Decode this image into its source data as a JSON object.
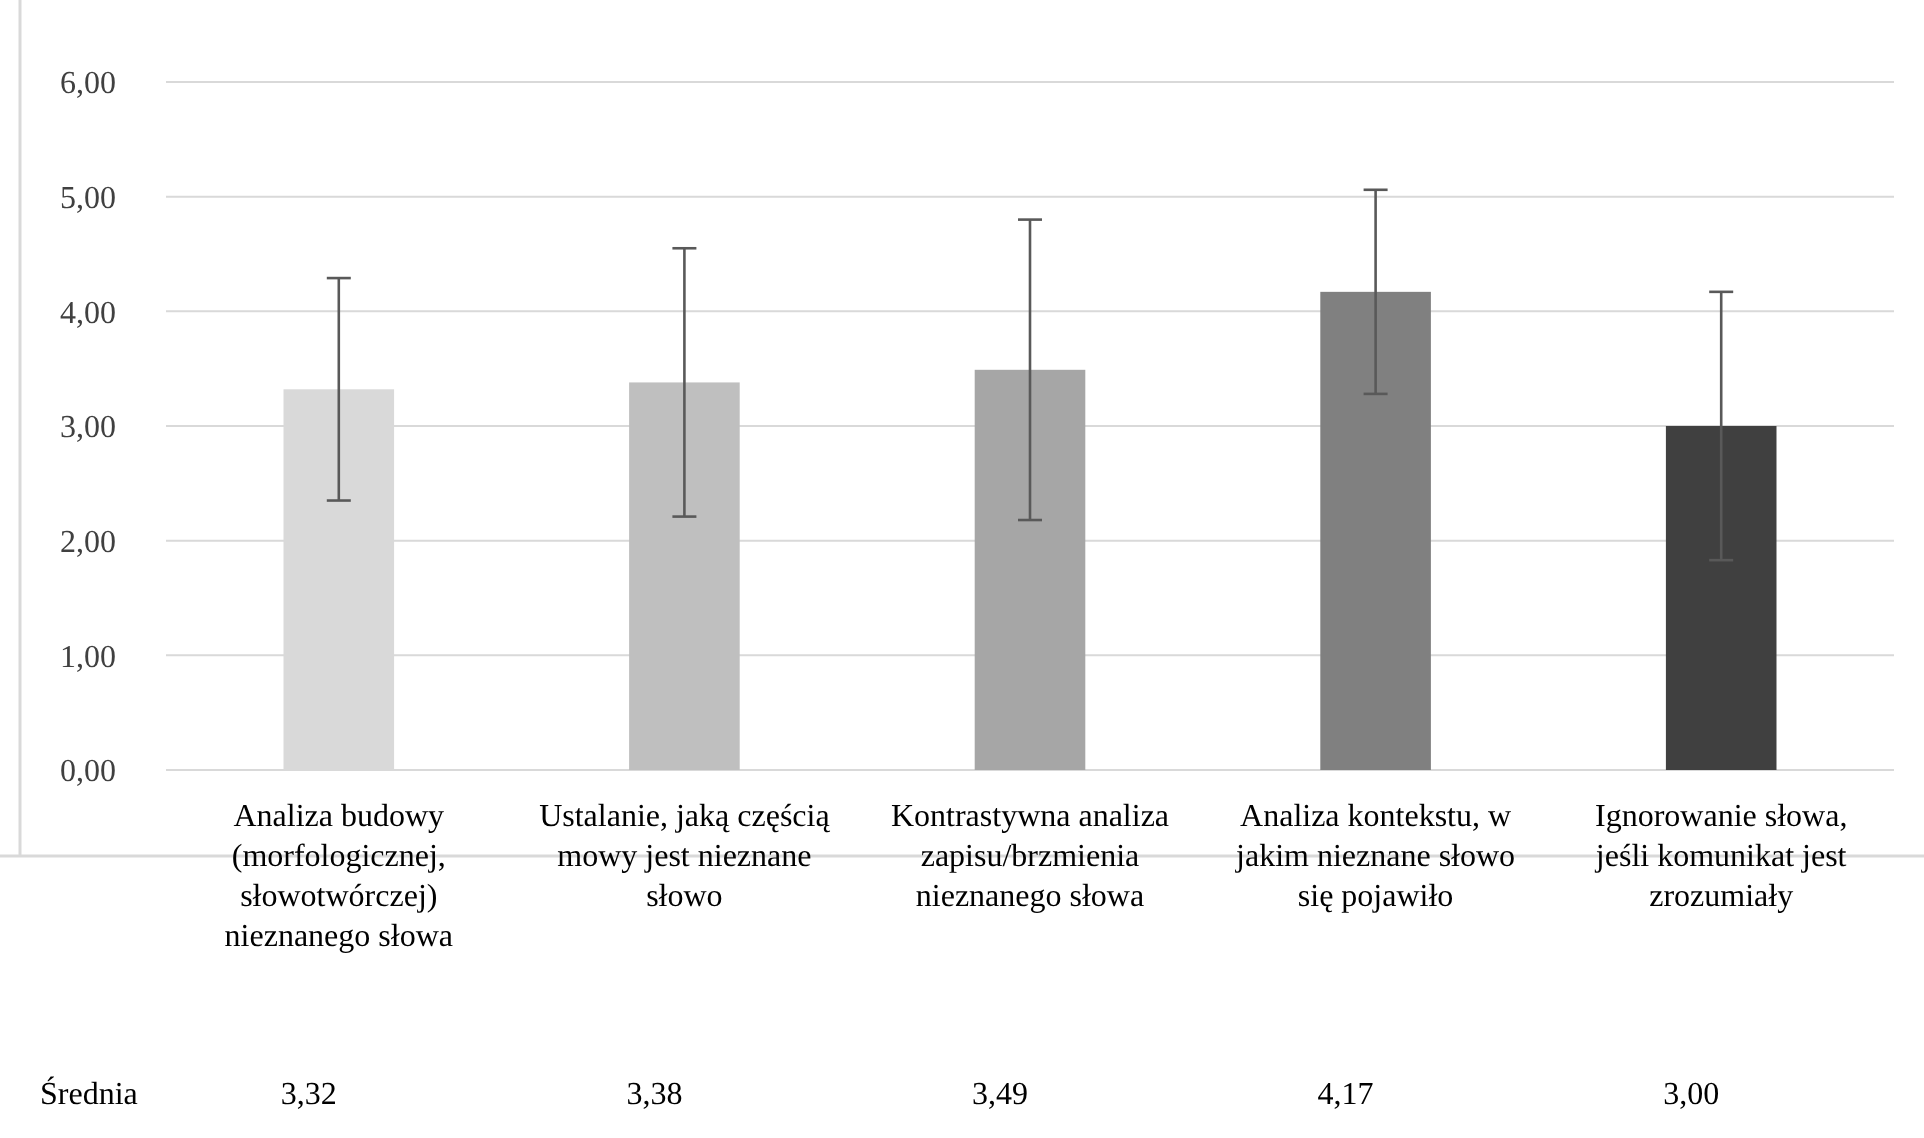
{
  "chart_data": {
    "type": "bar",
    "categories": [
      "Analiza budowy (morfologicznej, słowotwórczej) nieznanego słowa",
      "Ustalanie, jaką częścią mowy jest nieznane słowo",
      "Kontrastywna analiza zapisu/brzmienia nieznanego słowa",
      "Analiza kontekstu, w jakim nieznane słowo się pojawiło",
      "Ignorowanie słowa, jeśli komunikat jest zrozumiały"
    ],
    "series": [
      {
        "name": "Średnia",
        "colors": [
          "#d9d9d9",
          "#bfbfbf",
          "#a6a6a6",
          "#808080",
          "#404040"
        ],
        "values": [
          3.32,
          3.38,
          3.49,
          4.17,
          3.0
        ],
        "value_labels": [
          "3,32",
          "3,38",
          "3,49",
          "4,17",
          "3,00"
        ],
        "errors": [
          0.97,
          1.17,
          1.31,
          0.89,
          1.17
        ]
      }
    ],
    "ylim": [
      0,
      6
    ],
    "yticks": [
      {
        "value": 0,
        "label": "0,00"
      },
      {
        "value": 1,
        "label": "1,00"
      },
      {
        "value": 2,
        "label": "2,00"
      },
      {
        "value": 3,
        "label": "3,00"
      },
      {
        "value": 4,
        "label": "4,00"
      },
      {
        "value": 5,
        "label": "5,00"
      },
      {
        "value": 6,
        "label": "6,00"
      }
    ],
    "grid": "y"
  }
}
